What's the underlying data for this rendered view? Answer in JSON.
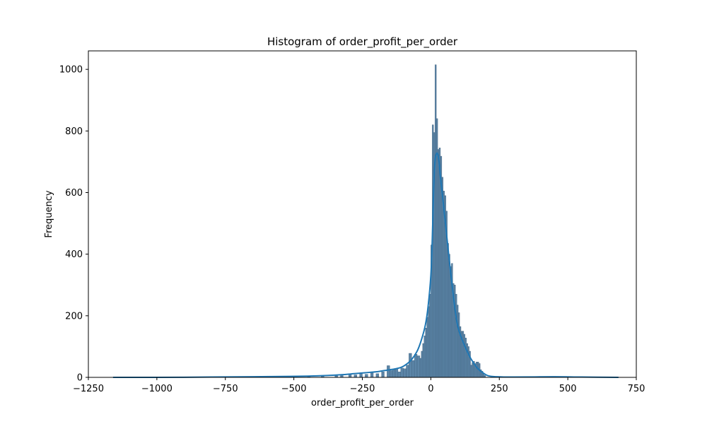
{
  "chart_data": {
    "type": "bar",
    "title": "Histogram of order_profit_per_order",
    "xlabel": "order_profit_per_order",
    "ylabel": "Frequency",
    "xlim": [
      -1250,
      750
    ],
    "ylim": [
      0,
      1060
    ],
    "x_ticks": [
      -1250,
      -1000,
      -750,
      -500,
      -250,
      0,
      250,
      500,
      750
    ],
    "x_tick_labels": [
      "−1250",
      "−1000",
      "−750",
      "−500",
      "−250",
      "0",
      "250",
      "500",
      "750"
    ],
    "y_ticks": [
      0,
      200,
      400,
      600,
      800,
      1000
    ],
    "y_tick_labels": [
      "0",
      "200",
      "400",
      "600",
      "800",
      "1000"
    ],
    "grid": false,
    "bar_color": "#5b84a6",
    "bar_edge_color": "#3d5f7c",
    "kde_color": "#1f77b4",
    "series": [
      {
        "kind": "histogram",
        "bins": [
          {
            "x0": -600,
            "x1": -590,
            "count": 2
          },
          {
            "x0": -500,
            "x1": -490,
            "count": 3
          },
          {
            "x0": -450,
            "x1": -440,
            "count": 3
          },
          {
            "x0": -400,
            "x1": -390,
            "count": 4
          },
          {
            "x0": -350,
            "x1": -340,
            "count": 5
          },
          {
            "x0": -330,
            "x1": -320,
            "count": 6
          },
          {
            "x0": -300,
            "x1": -290,
            "count": 10
          },
          {
            "x0": -280,
            "x1": -270,
            "count": 8
          },
          {
            "x0": -260,
            "x1": -250,
            "count": 12
          },
          {
            "x0": -240,
            "x1": -230,
            "count": 10
          },
          {
            "x0": -220,
            "x1": -210,
            "count": 15
          },
          {
            "x0": -200,
            "x1": -190,
            "count": 12
          },
          {
            "x0": -180,
            "x1": -170,
            "count": 18
          },
          {
            "x0": -160,
            "x1": -150,
            "count": 38
          },
          {
            "x0": -150,
            "x1": -140,
            "count": 22
          },
          {
            "x0": -140,
            "x1": -130,
            "count": 25
          },
          {
            "x0": -130,
            "x1": -120,
            "count": 28
          },
          {
            "x0": -120,
            "x1": -110,
            "count": 18
          },
          {
            "x0": -110,
            "x1": -100,
            "count": 30
          },
          {
            "x0": -100,
            "x1": -90,
            "count": 28
          },
          {
            "x0": -90,
            "x1": -80,
            "count": 40
          },
          {
            "x0": -80,
            "x1": -70,
            "count": 78
          },
          {
            "x0": -70,
            "x1": -60,
            "count": 55
          },
          {
            "x0": -60,
            "x1": -50,
            "count": 75
          },
          {
            "x0": -50,
            "x1": -40,
            "count": 70
          },
          {
            "x0": -40,
            "x1": -35,
            "count": 62
          },
          {
            "x0": -35,
            "x1": -30,
            "count": 85
          },
          {
            "x0": -30,
            "x1": -25,
            "count": 110
          },
          {
            "x0": -25,
            "x1": -20,
            "count": 135
          },
          {
            "x0": -20,
            "x1": -15,
            "count": 160
          },
          {
            "x0": -15,
            "x1": -10,
            "count": 195
          },
          {
            "x0": -10,
            "x1": -5,
            "count": 230
          },
          {
            "x0": -5,
            "x1": 0,
            "count": 270
          },
          {
            "x0": 0,
            "x1": 5,
            "count": 430
          },
          {
            "x0": 5,
            "x1": 10,
            "count": 820
          },
          {
            "x0": 10,
            "x1": 15,
            "count": 795
          },
          {
            "x0": 15,
            "x1": 20,
            "count": 1015
          },
          {
            "x0": 20,
            "x1": 25,
            "count": 840
          },
          {
            "x0": 25,
            "x1": 30,
            "count": 740
          },
          {
            "x0": 30,
            "x1": 35,
            "count": 745
          },
          {
            "x0": 35,
            "x1": 40,
            "count": 718
          },
          {
            "x0": 40,
            "x1": 45,
            "count": 650
          },
          {
            "x0": 45,
            "x1": 50,
            "count": 605
          },
          {
            "x0": 50,
            "x1": 55,
            "count": 590
          },
          {
            "x0": 55,
            "x1": 60,
            "count": 540
          },
          {
            "x0": 60,
            "x1": 65,
            "count": 435
          },
          {
            "x0": 65,
            "x1": 70,
            "count": 400
          },
          {
            "x0": 70,
            "x1": 75,
            "count": 360
          },
          {
            "x0": 75,
            "x1": 80,
            "count": 370
          },
          {
            "x0": 80,
            "x1": 85,
            "count": 305
          },
          {
            "x0": 85,
            "x1": 90,
            "count": 300
          },
          {
            "x0": 90,
            "x1": 95,
            "count": 270
          },
          {
            "x0": 95,
            "x1": 100,
            "count": 235
          },
          {
            "x0": 100,
            "x1": 105,
            "count": 210
          },
          {
            "x0": 105,
            "x1": 110,
            "count": 165
          },
          {
            "x0": 110,
            "x1": 115,
            "count": 150
          },
          {
            "x0": 115,
            "x1": 120,
            "count": 150
          },
          {
            "x0": 120,
            "x1": 125,
            "count": 140
          },
          {
            "x0": 125,
            "x1": 130,
            "count": 128
          },
          {
            "x0": 130,
            "x1": 135,
            "count": 110
          },
          {
            "x0": 135,
            "x1": 140,
            "count": 100
          },
          {
            "x0": 140,
            "x1": 145,
            "count": 85
          },
          {
            "x0": 145,
            "x1": 150,
            "count": 40
          },
          {
            "x0": 150,
            "x1": 155,
            "count": 48
          },
          {
            "x0": 155,
            "x1": 160,
            "count": 52
          },
          {
            "x0": 160,
            "x1": 165,
            "count": 45
          },
          {
            "x0": 165,
            "x1": 170,
            "count": 50
          },
          {
            "x0": 170,
            "x1": 175,
            "count": 50
          },
          {
            "x0": 175,
            "x1": 180,
            "count": 45
          },
          {
            "x0": 180,
            "x1": 185,
            "count": 25
          },
          {
            "x0": 185,
            "x1": 190,
            "count": 20
          },
          {
            "x0": 190,
            "x1": 195,
            "count": 12
          },
          {
            "x0": 195,
            "x1": 200,
            "count": 6
          }
        ]
      },
      {
        "kind": "kde",
        "x": [
          -1160,
          -1000,
          -800,
          -650,
          -550,
          -450,
          -380,
          -320,
          -280,
          -240,
          -200,
          -170,
          -140,
          -110,
          -90,
          -70,
          -50,
          -35,
          -20,
          -10,
          0,
          5,
          10,
          15,
          20,
          25,
          30,
          35,
          45,
          55,
          65,
          75,
          85,
          95,
          105,
          120,
          135,
          150,
          170,
          190,
          210,
          240,
          300,
          450,
          550,
          685
        ],
        "y": [
          0,
          0,
          1,
          2,
          3,
          4,
          6,
          9,
          12,
          15,
          18,
          22,
          26,
          32,
          42,
          58,
          85,
          120,
          170,
          230,
          330,
          440,
          600,
          700,
          725,
          725,
          700,
          650,
          570,
          485,
          400,
          320,
          245,
          180,
          145,
          110,
          80,
          55,
          30,
          15,
          5,
          2,
          1,
          2,
          1,
          0
        ]
      }
    ]
  }
}
